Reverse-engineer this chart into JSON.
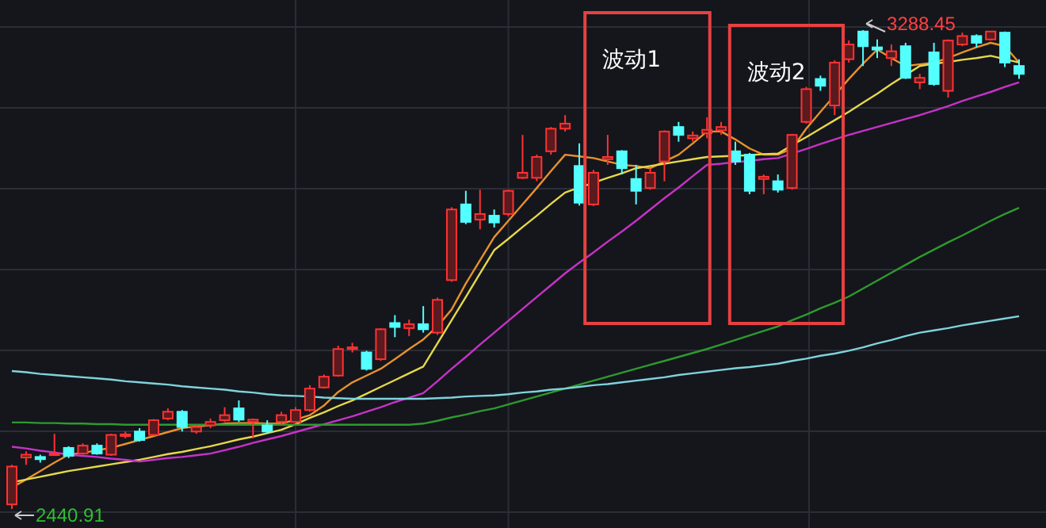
{
  "chart_data": {
    "type": "candlestick",
    "grid": true,
    "categories": [
      null,
      null,
      null,
      null,
      null,
      null,
      null,
      null,
      null,
      null,
      null,
      null,
      null,
      null,
      null,
      null,
      null,
      null,
      null,
      null,
      null,
      null,
      null,
      null,
      null,
      null,
      null,
      null,
      null,
      null,
      null,
      null,
      null,
      null,
      null,
      null,
      null,
      null,
      null,
      null,
      null,
      null,
      null,
      null,
      null,
      null,
      null,
      null,
      null,
      null,
      null,
      null,
      null,
      null,
      null,
      null,
      null,
      null,
      null,
      null,
      null,
      null,
      null,
      null,
      null,
      null,
      null,
      null,
      null,
      null,
      null,
      null
    ],
    "ohlc": [
      [
        2449,
        2519,
        2440.91,
        2516
      ],
      [
        2532,
        2543,
        2519,
        2537
      ],
      [
        2533,
        2537,
        2523,
        2529
      ],
      [
        2537,
        2574,
        2535,
        2539
      ],
      [
        2549,
        2552,
        2531,
        2535
      ],
      [
        2539,
        2557,
        2537,
        2553
      ],
      [
        2553,
        2557,
        2537,
        2539
      ],
      [
        2537,
        2574,
        2535,
        2572
      ],
      [
        2570,
        2578,
        2566,
        2573
      ],
      [
        2578,
        2584,
        2560,
        2563
      ],
      [
        2572,
        2600,
        2570,
        2598
      ],
      [
        2601,
        2619,
        2598,
        2613
      ],
      [
        2613,
        2616,
        2578,
        2586
      ],
      [
        2578,
        2589,
        2574,
        2586
      ],
      [
        2589,
        2601,
        2584,
        2595
      ],
      [
        2598,
        2621,
        2595,
        2607
      ],
      [
        2619,
        2633,
        2595,
        2599
      ],
      [
        2595,
        2601,
        2566,
        2599
      ],
      [
        2589,
        2598,
        2574,
        2578
      ],
      [
        2595,
        2613,
        2589,
        2607
      ],
      [
        2595,
        2621,
        2593,
        2616
      ],
      [
        2616,
        2660,
        2613,
        2654
      ],
      [
        2656,
        2679,
        2654,
        2675
      ],
      [
        2677,
        2730,
        2675,
        2724
      ],
      [
        2724,
        2735,
        2718,
        2727
      ],
      [
        2718,
        2721,
        2686,
        2689
      ],
      [
        2706,
        2761,
        2703,
        2759
      ],
      [
        2770,
        2784,
        2745,
        2763
      ],
      [
        2761,
        2776,
        2747,
        2768
      ],
      [
        2768,
        2800,
        2753,
        2759
      ],
      [
        2753,
        2815,
        2749,
        2811
      ],
      [
        2846,
        2975,
        2843,
        2971
      ],
      [
        2980,
        3004,
        2945,
        2949
      ],
      [
        2953,
        3006,
        2936,
        2963
      ],
      [
        2960,
        2971,
        2939,
        2948
      ],
      [
        2963,
        3006,
        2959,
        3004
      ],
      [
        3027,
        3103,
        3025,
        3036
      ],
      [
        3027,
        3068,
        3021,
        3064
      ],
      [
        3074,
        3117,
        3068,
        3114
      ],
      [
        3114,
        3138,
        3109,
        3123
      ],
      [
        3048,
        3088,
        2978,
        2983
      ],
      [
        2980,
        3041,
        2977,
        3036
      ],
      [
        3060,
        3103,
        3050,
        3064
      ],
      [
        3074,
        3076,
        3033,
        3044
      ],
      [
        3025,
        3050,
        2980,
        3004
      ],
      [
        3009,
        3044,
        3006,
        3036
      ],
      [
        3056,
        3111,
        3021,
        3109
      ],
      [
        3117,
        3126,
        3091,
        3103
      ],
      [
        3097,
        3109,
        3091,
        3102
      ],
      [
        3106,
        3134,
        3097,
        3112
      ],
      [
        3111,
        3126,
        3103,
        3117
      ],
      [
        3074,
        3091,
        3050,
        3056
      ],
      [
        3068,
        3071,
        2998,
        3004
      ],
      [
        3025,
        3033,
        2998,
        3029
      ],
      [
        3021,
        3033,
        3001,
        3006
      ],
      [
        3009,
        3105,
        3006,
        3103
      ],
      [
        3126,
        3188,
        3123,
        3184
      ],
      [
        3202,
        3208,
        3181,
        3190
      ],
      [
        3155,
        3235,
        3138,
        3231
      ],
      [
        3237,
        3270,
        3231,
        3263
      ],
      [
        3286,
        3288.45,
        3225,
        3260
      ],
      [
        3258,
        3272,
        3239,
        3254
      ],
      [
        3239,
        3263,
        3225,
        3251
      ],
      [
        3260,
        3266,
        3202,
        3204
      ],
      [
        3196,
        3211,
        3184,
        3204
      ],
      [
        3249,
        3266,
        3190,
        3193
      ],
      [
        3181,
        3272,
        3169,
        3270
      ],
      [
        3263,
        3284,
        3260,
        3278
      ],
      [
        3278,
        3281,
        3258,
        3266
      ],
      [
        3272,
        3287,
        3270,
        3286
      ],
      [
        3284,
        3286,
        3223,
        3231
      ],
      [
        3225,
        3237,
        3202,
        3211
      ]
    ],
    "series": [
      {
        "type": "line",
        "color": "#e8912c",
        "values": [
          2479,
          2493,
          2508,
          2523,
          2537,
          2540,
          2545,
          2549,
          2556,
          2563,
          2570,
          2577,
          2584,
          2587,
          2589,
          2592,
          2593,
          2593,
          2592,
          2592,
          2599,
          2607,
          2624,
          2648,
          2665,
          2677,
          2689,
          2706,
          2724,
          2741,
          2764,
          2794,
          2840,
          2881,
          2922,
          2951,
          2980,
          3009,
          3039,
          3068,
          3065,
          3062,
          3056,
          3050,
          3048,
          3044,
          3056,
          3068,
          3088,
          3109,
          3109,
          3095,
          3079,
          3068,
          3068,
          3079,
          3114,
          3144,
          3173,
          3202,
          3229,
          3254,
          3239,
          3225,
          3228,
          3231,
          3239,
          3249,
          3258,
          3266,
          3260,
          3231
        ]
      },
      {
        "type": "line",
        "color": "#e6d84a",
        "values": [
          2488,
          2493,
          2498,
          2503,
          2508,
          2512,
          2516,
          2520,
          2524,
          2528,
          2533,
          2538,
          2542,
          2547,
          2552,
          2558,
          2564,
          2569,
          2575,
          2581,
          2591,
          2602,
          2612,
          2623,
          2633,
          2645,
          2657,
          2669,
          2681,
          2693,
          2734,
          2775,
          2816,
          2858,
          2899,
          2919,
          2940,
          2960,
          2981,
          3001,
          3010,
          3018,
          3027,
          3035,
          3044,
          3048,
          3052,
          3056,
          3060,
          3064,
          3065,
          3066,
          3067,
          3069,
          3070,
          3085,
          3099,
          3114,
          3129,
          3144,
          3160,
          3176,
          3193,
          3209,
          3225,
          3229,
          3232,
          3236,
          3239,
          3243,
          3237,
          3231
        ]
      },
      {
        "type": "line",
        "color": "#c832c8",
        "values": [
          2551,
          2548,
          2544,
          2541,
          2537,
          2535,
          2533,
          2530,
          2528,
          2525,
          2528,
          2531,
          2533,
          2536,
          2539,
          2545,
          2551,
          2558,
          2564,
          2570,
          2577,
          2584,
          2591,
          2598,
          2605,
          2613,
          2621,
          2630,
          2638,
          2646,
          2667,
          2689,
          2710,
          2732,
          2753,
          2774,
          2795,
          2816,
          2837,
          2858,
          2877,
          2895,
          2914,
          2932,
          2951,
          2971,
          2991,
          3010,
          3030,
          3050,
          3052,
          3055,
          3057,
          3060,
          3062,
          3070,
          3078,
          3087,
          3095,
          3103,
          3110,
          3117,
          3124,
          3131,
          3138,
          3146,
          3154,
          3163,
          3171,
          3179,
          3188,
          3196
        ]
      },
      {
        "type": "line",
        "color": "#2e9a2e",
        "values": [
          2594,
          2594,
          2593,
          2593,
          2592,
          2592,
          2591,
          2591,
          2590,
          2590,
          2590,
          2590,
          2590,
          2590,
          2590,
          2590,
          2590,
          2590,
          2590,
          2590,
          2590,
          2590,
          2590,
          2590,
          2590,
          2590,
          2590,
          2590,
          2590,
          2592,
          2597,
          2603,
          2608,
          2614,
          2619,
          2626,
          2633,
          2640,
          2647,
          2654,
          2661,
          2668,
          2675,
          2682,
          2689,
          2696,
          2703,
          2710,
          2717,
          2724,
          2732,
          2740,
          2748,
          2756,
          2764,
          2775,
          2785,
          2796,
          2806,
          2817,
          2831,
          2845,
          2859,
          2873,
          2887,
          2900,
          2913,
          2925,
          2938,
          2951,
          2963,
          2974
        ]
      },
      {
        "type": "line",
        "color": "#7fd3dc",
        "values": [
          2685,
          2683,
          2680,
          2678,
          2676,
          2674,
          2672,
          2670,
          2667,
          2665,
          2663,
          2661,
          2658,
          2656,
          2654,
          2652,
          2649,
          2647,
          2644,
          2642,
          2641,
          2640,
          2638,
          2637,
          2636,
          2636,
          2636,
          2636,
          2636,
          2636,
          2637,
          2638,
          2640,
          2641,
          2642,
          2644,
          2647,
          2649,
          2652,
          2654,
          2657,
          2660,
          2662,
          2665,
          2668,
          2671,
          2674,
          2678,
          2681,
          2684,
          2687,
          2690,
          2692,
          2695,
          2698,
          2703,
          2707,
          2712,
          2716,
          2721,
          2727,
          2734,
          2740,
          2747,
          2753,
          2757,
          2761,
          2766,
          2770,
          2774,
          2778,
          2782
        ]
      }
    ],
    "annotations": [
      "3288.45",
      "2440.91",
      "波动1",
      "波动2"
    ]
  }
}
